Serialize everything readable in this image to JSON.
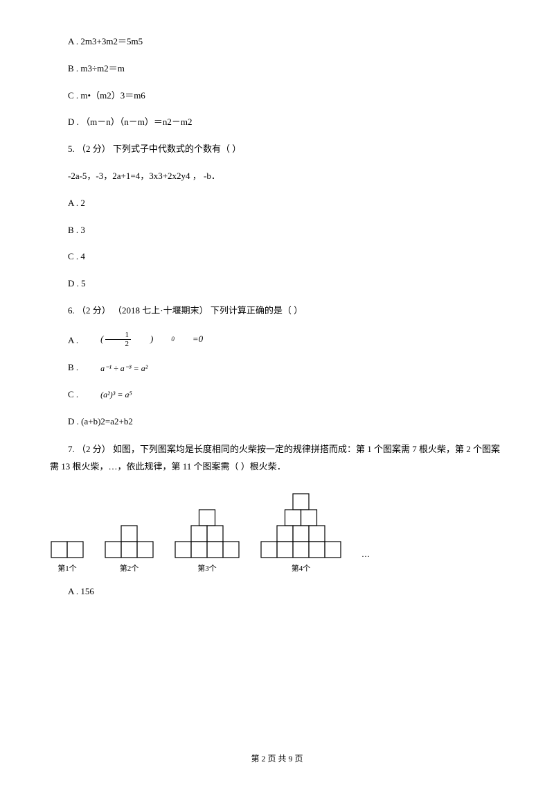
{
  "q4": {
    "optA": "A .  2m3+3m2＝5m5",
    "optB": "B .  m3÷m2＝m",
    "optC": "C .  m•（m2）3＝m6",
    "optD": "D .  （m－n）（n－m）＝n2－m2"
  },
  "q5": {
    "stem": "5.   （2 分）  下列式子中代数式的个数有（        ）",
    "expr": "-2a-5，-3，2a+1=4，3x3+2x2y4 ，  -b．",
    "optA": "A .  2",
    "optB": "B .  3",
    "optC": "C .  4",
    "optD": "D .  5"
  },
  "q6": {
    "stem": "6.   （2 分）  （2018 七上·十堰期末） 下列计算正确的是（        ）",
    "optA_letter": "A .",
    "optA_formula": {
      "lparen": "(",
      "fnum": "1",
      "fden": "2",
      "rparen": ")",
      "exp": "0",
      "eq": "=0"
    },
    "optB_letter": "B .",
    "optB_formula": "a⁻¹ ÷ a⁻³ = a²",
    "optC_letter": "C .",
    "optC_formula": "(a²)³ = a⁵",
    "optD": "D .  (a+b)2=a2+b2"
  },
  "q7": {
    "stem": "7.   （2 分）  如图，下列图案均是长度相同的火柴按一定的规律拼搭而成：第 1 个图案需 7 根火柴，第 2 个图案需 13 根火柴，…，依此规律，第 11 个图案需（        ）根火柴．",
    "labels": [
      "第1个",
      "第2个",
      "第3个",
      "第4个"
    ],
    "optA": "A .  156"
  },
  "footer": "第  2  页  共  9  页",
  "svg": {
    "cell": 23,
    "stroke": "#000000",
    "strokeWidth": 1.2
  }
}
